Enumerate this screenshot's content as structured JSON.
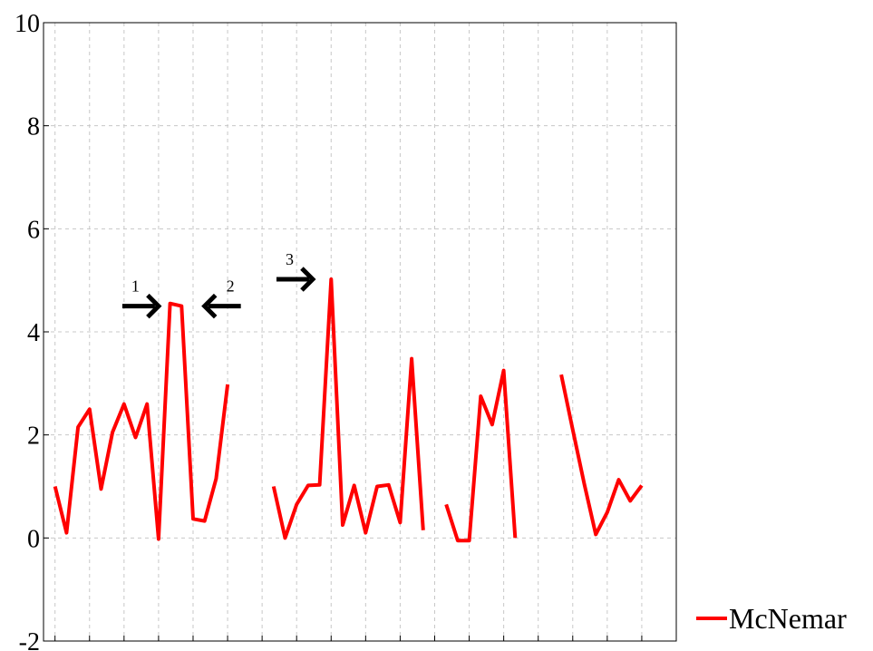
{
  "chart_data": {
    "type": "line",
    "title": "",
    "xlabel": "",
    "ylabel": "",
    "ylim": [
      -2,
      10
    ],
    "yticks": [
      "-2",
      "0",
      "2",
      "4",
      "6",
      "8",
      "10"
    ],
    "grid": true,
    "legend_position": "bottom-right",
    "series": [
      {
        "name": "McNemar",
        "color": "#ff0000",
        "segments": [
          [
            {
              "x": 1,
              "y": 1.0
            },
            {
              "x": 2,
              "y": 0.1
            },
            {
              "x": 3,
              "y": 2.15
            },
            {
              "x": 4,
              "y": 2.5
            },
            {
              "x": 5,
              "y": 0.95
            },
            {
              "x": 6,
              "y": 2.05
            },
            {
              "x": 7,
              "y": 2.6
            },
            {
              "x": 8,
              "y": 1.95
            },
            {
              "x": 9,
              "y": 2.6
            },
            {
              "x": 10,
              "y": -0.02
            },
            {
              "x": 11,
              "y": 4.55
            },
            {
              "x": 12,
              "y": 4.5
            },
            {
              "x": 13,
              "y": 0.37
            },
            {
              "x": 14,
              "y": 0.33
            },
            {
              "x": 15,
              "y": 1.15
            },
            {
              "x": 16,
              "y": 2.98
            }
          ],
          [
            {
              "x": 20,
              "y": 1.0
            },
            {
              "x": 21,
              "y": 0.0
            },
            {
              "x": 22,
              "y": 0.65
            },
            {
              "x": 23,
              "y": 1.02
            },
            {
              "x": 24,
              "y": 1.03
            },
            {
              "x": 25,
              "y": 5.02
            },
            {
              "x": 26,
              "y": 0.25
            },
            {
              "x": 27,
              "y": 1.02
            },
            {
              "x": 28,
              "y": 0.1
            },
            {
              "x": 29,
              "y": 1.0
            },
            {
              "x": 30,
              "y": 1.03
            },
            {
              "x": 31,
              "y": 0.3
            },
            {
              "x": 32,
              "y": 3.48
            },
            {
              "x": 33,
              "y": 0.15
            }
          ],
          [
            {
              "x": 35,
              "y": 0.65
            },
            {
              "x": 36,
              "y": -0.05
            },
            {
              "x": 37,
              "y": -0.05
            },
            {
              "x": 38,
              "y": 2.75
            },
            {
              "x": 39,
              "y": 2.2
            },
            {
              "x": 40,
              "y": 3.25
            },
            {
              "x": 41,
              "y": 0.0
            }
          ],
          [
            {
              "x": 45,
              "y": 3.17
            },
            {
              "x": 46,
              "y": 2.1
            },
            {
              "x": 47,
              "y": 1.05
            },
            {
              "x": 48,
              "y": 0.07
            },
            {
              "x": 49,
              "y": 0.5
            },
            {
              "x": 50,
              "y": 1.13
            },
            {
              "x": 51,
              "y": 0.72
            },
            {
              "x": 52,
              "y": 1.02
            }
          ]
        ]
      }
    ],
    "annotations": [
      {
        "label": "1",
        "direction": "right",
        "x": 10,
        "y": 4.5
      },
      {
        "label": "2",
        "direction": "left",
        "x": 14,
        "y": 4.5
      },
      {
        "label": "3",
        "direction": "right",
        "x": 23.4,
        "y": 5.02
      }
    ]
  }
}
